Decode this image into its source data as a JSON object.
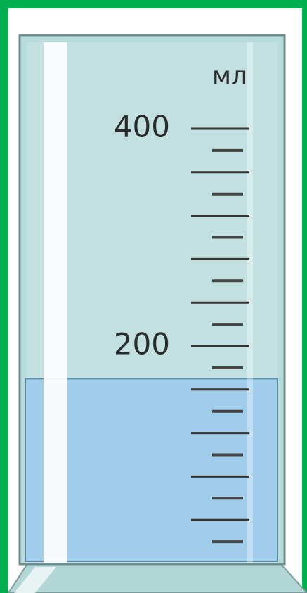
{
  "scale": {
    "unit": "мл",
    "range": [
      0,
      400
    ],
    "major_ticks": [
      40,
      80,
      120,
      160,
      200,
      240,
      280,
      320,
      360,
      400
    ],
    "minor_ticks": [
      20,
      60,
      100,
      140,
      180,
      220,
      260,
      300,
      340,
      380
    ],
    "tick_labels": [
      400,
      200
    ],
    "level": 170
  }
}
